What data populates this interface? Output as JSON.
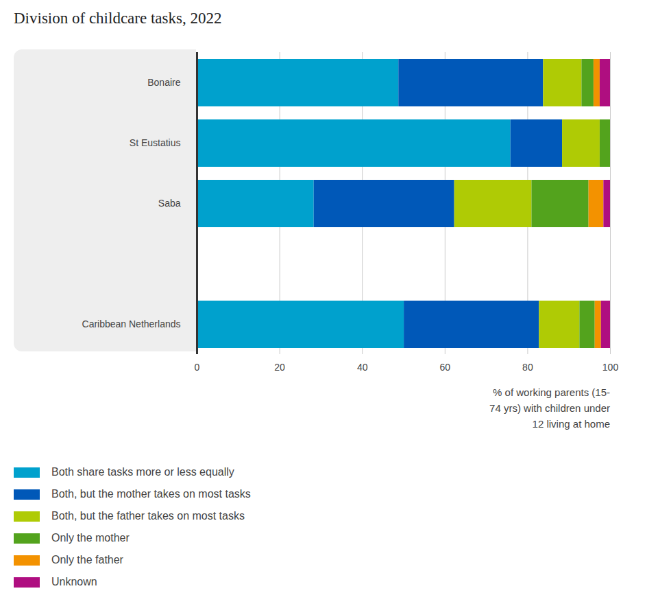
{
  "chart_data": {
    "type": "bar",
    "title": "Division of childcare tasks, 2022",
    "orientation": "horizontal",
    "stacked": true,
    "grid": true,
    "legend": "bottom",
    "x_label": "% of working parents (15-74 yrs) with children under 12 living at home",
    "categories": [
      "Bonaire",
      "St Eustatius",
      "Saba",
      null,
      "Caribbean Netherlands"
    ],
    "xlim": [
      0,
      100
    ],
    "xticks": [
      0,
      20,
      40,
      60,
      80,
      100
    ],
    "series": [
      {
        "name": "Both share tasks more or less equally",
        "color": "#00a1cd",
        "values": [
          48.8,
          75.9,
          28.3,
          null,
          50.1
        ]
      },
      {
        "name": "Both, but the mother takes on most tasks",
        "color": "#0058b8",
        "values": [
          35.0,
          12.5,
          34.0,
          null,
          32.7
        ]
      },
      {
        "name": "Both, but the father takes on most tasks",
        "color": "#afcb05",
        "values": [
          9.3,
          9.1,
          18.7,
          null,
          9.8
        ]
      },
      {
        "name": "Only the mother",
        "color": "#53a31d",
        "values": [
          2.9,
          2.5,
          13.8,
          null,
          3.7
        ]
      },
      {
        "name": "Only the father",
        "color": "#f39200",
        "values": [
          1.5,
          0,
          3.6,
          null,
          1.5
        ]
      },
      {
        "name": "Unknown",
        "color": "#af0e80",
        "values": [
          2.5,
          0,
          1.6,
          null,
          2.2
        ]
      }
    ]
  }
}
